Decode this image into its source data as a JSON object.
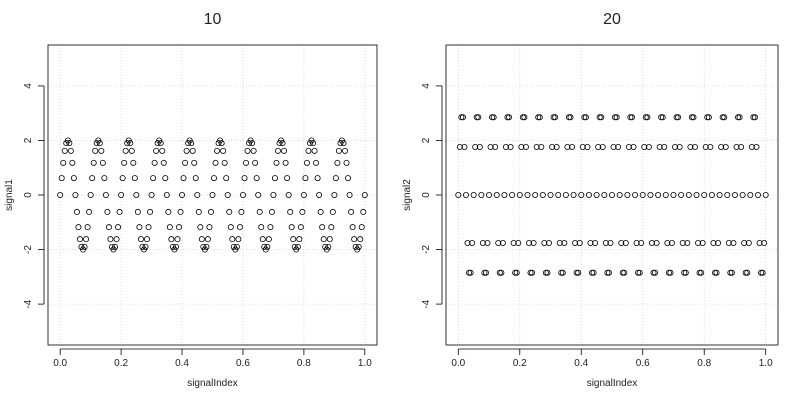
{
  "chart_data": [
    {
      "type": "scatter",
      "title": "10",
      "x_label": "signalIndex",
      "y_label": "signal1",
      "xlim": [
        -0.04,
        1.04
      ],
      "ylim": [
        -5.5,
        5.5
      ],
      "xticks": [
        {
          "value": 0,
          "label": "0.0"
        },
        0.2,
        0.4,
        0.6,
        0.8,
        {
          "value": 1,
          "label": "1.0"
        }
      ],
      "yticks": [
        -4,
        -2,
        0,
        2,
        4
      ],
      "grid": true,
      "color": "#000000",
      "x": [
        0,
        0.005,
        0.01,
        0.015,
        0.02,
        0.025,
        0.03,
        0.035,
        0.04,
        0.045,
        0.05,
        0.055,
        0.06,
        0.065,
        0.07,
        0.075,
        0.08,
        0.085,
        0.09,
        0.095,
        0.1,
        0.105,
        0.11,
        0.115,
        0.12,
        0.125,
        0.13,
        0.135,
        0.14,
        0.145,
        0.15,
        0.155,
        0.16,
        0.165,
        0.17,
        0.175,
        0.18,
        0.185,
        0.19,
        0.195,
        0.2,
        0.205,
        0.21,
        0.215,
        0.22,
        0.225,
        0.23,
        0.235,
        0.24,
        0.245,
        0.25,
        0.255,
        0.26,
        0.265,
        0.27,
        0.275,
        0.28,
        0.285,
        0.29,
        0.295,
        0.3,
        0.305,
        0.31,
        0.315,
        0.32,
        0.325,
        0.33,
        0.335,
        0.34,
        0.345,
        0.35,
        0.355,
        0.36,
        0.365,
        0.37,
        0.375,
        0.38,
        0.385,
        0.39,
        0.395,
        0.4,
        0.405,
        0.41,
        0.415,
        0.42,
        0.425,
        0.43,
        0.435,
        0.44,
        0.445,
        0.45,
        0.455,
        0.46,
        0.465,
        0.47,
        0.475,
        0.48,
        0.485,
        0.49,
        0.495,
        0.5,
        0.505,
        0.51,
        0.515,
        0.52,
        0.525,
        0.53,
        0.535,
        0.54,
        0.545,
        0.55,
        0.555,
        0.56,
        0.565,
        0.57,
        0.575,
        0.58,
        0.585,
        0.59,
        0.595,
        0.6,
        0.605,
        0.61,
        0.615,
        0.62,
        0.625,
        0.63,
        0.635,
        0.64,
        0.645,
        0.65,
        0.655,
        0.66,
        0.665,
        0.67,
        0.675,
        0.68,
        0.685,
        0.69,
        0.695,
        0.7,
        0.705,
        0.71,
        0.715,
        0.72,
        0.725,
        0.73,
        0.735,
        0.74,
        0.745,
        0.75,
        0.755,
        0.76,
        0.765,
        0.77,
        0.775,
        0.78,
        0.785,
        0.79,
        0.795,
        0.8,
        0.805,
        0.81,
        0.815,
        0.82,
        0.825,
        0.83,
        0.835,
        0.84,
        0.845,
        0.85,
        0.855,
        0.86,
        0.865,
        0.87,
        0.875,
        0.88,
        0.885,
        0.89,
        0.895,
        0.9,
        0.905,
        0.91,
        0.915,
        0.92,
        0.925,
        0.93,
        0.935,
        0.94,
        0.945,
        0.95,
        0.955,
        0.96,
        0.965,
        0.97,
        0.975,
        0.98,
        0.985,
        0.99,
        0.995,
        1
      ],
      "values": [
        0,
        0.62,
        1.18,
        1.62,
        1.9,
        2,
        1.9,
        1.62,
        1.18,
        0.62,
        0,
        -0.62,
        -1.18,
        -1.62,
        -1.9,
        -2,
        -1.9,
        -1.62,
        -1.18,
        -0.62,
        0,
        0.62,
        1.18,
        1.62,
        1.9,
        2,
        1.9,
        1.62,
        1.18,
        0.62,
        0,
        -0.62,
        -1.18,
        -1.62,
        -1.9,
        -2,
        -1.9,
        -1.62,
        -1.18,
        -0.62,
        0,
        0.62,
        1.18,
        1.62,
        1.9,
        2,
        1.9,
        1.62,
        1.18,
        0.62,
        0,
        -0.62,
        -1.18,
        -1.62,
        -1.9,
        -2,
        -1.9,
        -1.62,
        -1.18,
        -0.62,
        0,
        0.62,
        1.18,
        1.62,
        1.9,
        2,
        1.9,
        1.62,
        1.18,
        0.62,
        0,
        -0.62,
        -1.18,
        -1.62,
        -1.9,
        -2,
        -1.9,
        -1.62,
        -1.18,
        -0.62,
        0,
        0.62,
        1.18,
        1.62,
        1.9,
        2,
        1.9,
        1.62,
        1.18,
        0.62,
        0,
        -0.62,
        -1.18,
        -1.62,
        -1.9,
        -2,
        -1.9,
        -1.62,
        -1.18,
        -0.62,
        0,
        0.62,
        1.18,
        1.62,
        1.9,
        2,
        1.9,
        1.62,
        1.18,
        0.62,
        0,
        -0.62,
        -1.18,
        -1.62,
        -1.9,
        -2,
        -1.9,
        -1.62,
        -1.18,
        -0.62,
        0,
        0.62,
        1.18,
        1.62,
        1.9,
        2,
        1.9,
        1.62,
        1.18,
        0.62,
        0,
        -0.62,
        -1.18,
        -1.62,
        -1.9,
        -2,
        -1.9,
        -1.62,
        -1.18,
        -0.62,
        0,
        0.62,
        1.18,
        1.62,
        1.9,
        2,
        1.9,
        1.62,
        1.18,
        0.62,
        0,
        -0.62,
        -1.18,
        -1.62,
        -1.9,
        -2,
        -1.9,
        -1.62,
        -1.18,
        -0.62,
        0,
        0.62,
        1.18,
        1.62,
        1.9,
        2,
        1.9,
        1.62,
        1.18,
        0.62,
        0,
        -0.62,
        -1.18,
        -1.62,
        -1.9,
        -2,
        -1.9,
        -1.62,
        -1.18,
        -0.62,
        0,
        0.62,
        1.18,
        1.62,
        1.9,
        2,
        1.9,
        1.62,
        1.18,
        0.62,
        0,
        -0.62,
        -1.18,
        -1.62,
        -1.9,
        -2,
        -1.9,
        -1.62,
        -1.18,
        -0.62,
        0
      ]
    },
    {
      "type": "scatter",
      "title": "20",
      "x_label": "signalIndex",
      "y_label": "signal2",
      "xlim": [
        -0.04,
        1.04
      ],
      "ylim": [
        -5.5,
        5.5
      ],
      "xticks": [
        {
          "value": 0,
          "label": "0.0"
        },
        0.2,
        0.4,
        0.6,
        0.8,
        {
          "value": 1,
          "label": "1.0"
        }
      ],
      "yticks": [
        -4,
        -2,
        0,
        2,
        4
      ],
      "grid": true,
      "color": "#000000",
      "x": [
        0,
        0.005,
        0.01,
        0.015,
        0.02,
        0.025,
        0.03,
        0.035,
        0.04,
        0.045,
        0.05,
        0.055,
        0.06,
        0.065,
        0.07,
        0.075,
        0.08,
        0.085,
        0.09,
        0.095,
        0.1,
        0.105,
        0.11,
        0.115,
        0.12,
        0.125,
        0.13,
        0.135,
        0.14,
        0.145,
        0.15,
        0.155,
        0.16,
        0.165,
        0.17,
        0.175,
        0.18,
        0.185,
        0.19,
        0.195,
        0.2,
        0.205,
        0.21,
        0.215,
        0.22,
        0.225,
        0.23,
        0.235,
        0.24,
        0.245,
        0.25,
        0.255,
        0.26,
        0.265,
        0.27,
        0.275,
        0.28,
        0.285,
        0.29,
        0.295,
        0.3,
        0.305,
        0.31,
        0.315,
        0.32,
        0.325,
        0.33,
        0.335,
        0.34,
        0.345,
        0.35,
        0.355,
        0.36,
        0.365,
        0.37,
        0.375,
        0.38,
        0.385,
        0.39,
        0.395,
        0.4,
        0.405,
        0.41,
        0.415,
        0.42,
        0.425,
        0.43,
        0.435,
        0.44,
        0.445,
        0.45,
        0.455,
        0.46,
        0.465,
        0.47,
        0.475,
        0.48,
        0.485,
        0.49,
        0.495,
        0.5,
        0.505,
        0.51,
        0.515,
        0.52,
        0.525,
        0.53,
        0.535,
        0.54,
        0.545,
        0.55,
        0.555,
        0.56,
        0.565,
        0.57,
        0.575,
        0.58,
        0.585,
        0.59,
        0.595,
        0.6,
        0.605,
        0.61,
        0.615,
        0.62,
        0.625,
        0.63,
        0.635,
        0.64,
        0.645,
        0.65,
        0.655,
        0.66,
        0.665,
        0.67,
        0.675,
        0.68,
        0.685,
        0.69,
        0.695,
        0.7,
        0.705,
        0.71,
        0.715,
        0.72,
        0.725,
        0.73,
        0.735,
        0.74,
        0.745,
        0.75,
        0.755,
        0.76,
        0.765,
        0.77,
        0.775,
        0.78,
        0.785,
        0.79,
        0.795,
        0.8,
        0.805,
        0.81,
        0.815,
        0.82,
        0.825,
        0.83,
        0.835,
        0.84,
        0.845,
        0.85,
        0.855,
        0.86,
        0.865,
        0.87,
        0.875,
        0.88,
        0.885,
        0.89,
        0.895,
        0.9,
        0.905,
        0.91,
        0.915,
        0.92,
        0.925,
        0.93,
        0.935,
        0.94,
        0.945,
        0.95,
        0.955,
        0.96,
        0.965,
        0.97,
        0.975,
        0.98,
        0.985,
        0.99,
        0.995,
        1
      ],
      "values": [
        0,
        1.76,
        2.85,
        2.85,
        1.76,
        0,
        -1.76,
        -2.85,
        -2.85,
        -1.76,
        0,
        1.76,
        2.85,
        2.85,
        1.76,
        0,
        -1.76,
        -2.85,
        -2.85,
        -1.76,
        0,
        1.76,
        2.85,
        2.85,
        1.76,
        0,
        -1.76,
        -2.85,
        -2.85,
        -1.76,
        0,
        1.76,
        2.85,
        2.85,
        1.76,
        0,
        -1.76,
        -2.85,
        -2.85,
        -1.76,
        0,
        1.76,
        2.85,
        2.85,
        1.76,
        0,
        -1.76,
        -2.85,
        -2.85,
        -1.76,
        0,
        1.76,
        2.85,
        2.85,
        1.76,
        0,
        -1.76,
        -2.85,
        -2.85,
        -1.76,
        0,
        1.76,
        2.85,
        2.85,
        1.76,
        0,
        -1.76,
        -2.85,
        -2.85,
        -1.76,
        0,
        1.76,
        2.85,
        2.85,
        1.76,
        0,
        -1.76,
        -2.85,
        -2.85,
        -1.76,
        0,
        1.76,
        2.85,
        2.85,
        1.76,
        0,
        -1.76,
        -2.85,
        -2.85,
        -1.76,
        0,
        1.76,
        2.85,
        2.85,
        1.76,
        0,
        -1.76,
        -2.85,
        -2.85,
        -1.76,
        0,
        1.76,
        2.85,
        2.85,
        1.76,
        0,
        -1.76,
        -2.85,
        -2.85,
        -1.76,
        0,
        1.76,
        2.85,
        2.85,
        1.76,
        0,
        -1.76,
        -2.85,
        -2.85,
        -1.76,
        0,
        1.76,
        2.85,
        2.85,
        1.76,
        0,
        -1.76,
        -2.85,
        -2.85,
        -1.76,
        0,
        1.76,
        2.85,
        2.85,
        1.76,
        0,
        -1.76,
        -2.85,
        -2.85,
        -1.76,
        0,
        1.76,
        2.85,
        2.85,
        1.76,
        0,
        -1.76,
        -2.85,
        -2.85,
        -1.76,
        0,
        1.76,
        2.85,
        2.85,
        1.76,
        0,
        -1.76,
        -2.85,
        -2.85,
        -1.76,
        0,
        1.76,
        2.85,
        2.85,
        1.76,
        0,
        -1.76,
        -2.85,
        -2.85,
        -1.76,
        0,
        1.76,
        2.85,
        2.85,
        1.76,
        0,
        -1.76,
        -2.85,
        -2.85,
        -1.76,
        0,
        1.76,
        2.85,
        2.85,
        1.76,
        0,
        -1.76,
        -2.85,
        -2.85,
        -1.76,
        0,
        1.76,
        2.85,
        2.85,
        1.76,
        0,
        -1.76,
        -2.85,
        -2.85,
        -1.76,
        0
      ]
    }
  ]
}
